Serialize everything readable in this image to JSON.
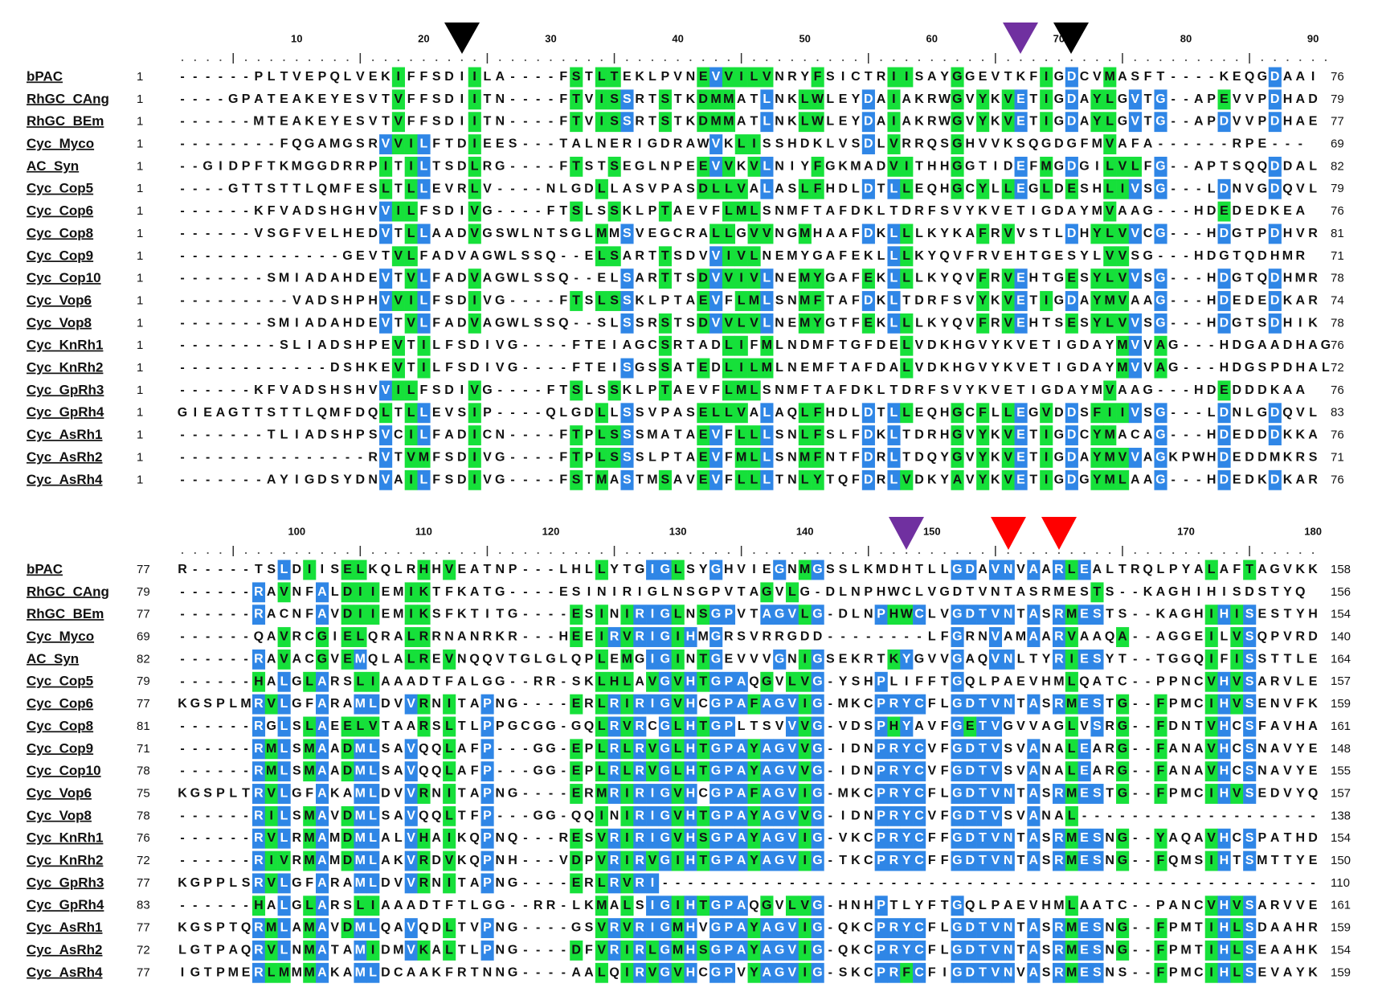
{
  "blocks": [
    {
      "ruler": [
        "10",
        "20",
        "30",
        "40",
        "50",
        "60",
        "70",
        "80",
        "90"
      ],
      "rows": [
        {
          "name": "bPAC",
          "start": "1",
          "sequence": "------PLTVEPQLVEKIFFSDIILA----FSTLTEKLPVNEVVILVNRYFSICTRIISAYGGEVTKFIGDCVMASFT----KEQGDAAI",
          "end": "76"
        },
        {
          "name": "RhGC_CAng",
          "start": "1",
          "sequence": "----GPATEAKEYESVTVFFSDIITN----FTVISSRTSTKDMMATLNKLWLEYDAIAKRWGVYKVETIGDAYLGVTG--APEVVPDHAD",
          "end": "79"
        },
        {
          "name": "RhGC_BEm",
          "start": "1",
          "sequence": "------MTEAKEYESVTVFFSDIITN----FTVISSRTSTKDMMATLNKLWLEYDAIAKRWGVYKVETIGDAYLGVTG--APDVVPDHAE",
          "end": "77"
        },
        {
          "name": "Cyc_Myco",
          "start": "1",
          "sequence": "--------FQGAMGSRVVILFTDIEES---TALNERIGDRAWVKLISSHDKLVSDLVRRQSGHVVKSQGDGFMVAFA------RPE---",
          "end": "69"
        },
        {
          "name": "AC_Syn",
          "start": "1",
          "sequence": "--GIDPFTKMGGDRRPITILTSDLRG----FTSTSEGLNPEEVVKVLNIYFGKMADVITHHGGTIDEFMGDGILVLFG--APTSQQDDAL",
          "end": "82"
        },
        {
          "name": "Cyc_Cop5",
          "start": "1",
          "sequence": "----GTTSTTLQMFESLTLLEVRLV----NLGDLLASVPASDLLVALASLFHDLDTLLEQHGCYLLEGLDESHLIVSG---LDNVGDQVL",
          "end": "79"
        },
        {
          "name": "Cyc_Cop6",
          "start": "1",
          "sequence": "------KFVADSHGHVVILFSDIVG----FTSLSSKLPTAEVFLMLSNMFTAFDKLTDRFSVYKVETIGDAYMVAAG---HDEDEDKEA",
          "end": "76"
        },
        {
          "name": "Cyc_Cop8",
          "start": "1",
          "sequence": "------VSGFVELHEDVTLLAADVGSWLNTSGLMMSVEGCRALLGVVNGMHAAFDKLLLKYKAFRVVSTLDHYLVVCG---HDGTPDHVR",
          "end": "81"
        },
        {
          "name": "Cyc_Cop9",
          "start": "1",
          "sequence": "-------------GEVTVLFADVAGWLSSQ--ELSARTTSDVVIVLNEMYGAFEKLLLKYQVFRVEHTGESYLVVSG---HDGTQDHMR",
          "end": "71"
        },
        {
          "name": "Cyc_Cop10",
          "start": "1",
          "sequence": "-------SMIADAHDEVTVLFADVAGWLSSQ--ELSARTTSDVVIVLNEMYGAFEKLLLKYQVFRVEHTGESYLVVSG---HDGTQDHMR",
          "end": "78"
        },
        {
          "name": "Cyc_Vop6",
          "start": "1",
          "sequence": "---------VADSHPHVVILFSDIVG----FTSLSSKLPTAEVFLMLSNMFTAFDKLTDRFSVYKVETIGDAYMVAAG---HDEDEDKAR",
          "end": "74"
        },
        {
          "name": "Cyc_Vop8",
          "start": "1",
          "sequence": "-------SMIADAHDEVTVLFADVAGWLSSQ--SLSSRSTSDVVLVLNEMYGTFEKLLLKYQVFRVEHTSESYLVVSG---HDGTSDHIK",
          "end": "78"
        },
        {
          "name": "Cyc_KnRh1",
          "start": "1",
          "sequence": "--------SLIADSHPEVTILFSDIVG----FTEIAGCSRTADLIFMLNDMFTGFDELVDKHGVYKVETIGDAYMVVAG---HDGAADHAG",
          "end": "76"
        },
        {
          "name": "Cyc_KnRh2",
          "start": "1",
          "sequence": "------------DSHKEVTILFSDIVG----FTEISGSSATEDLILMLNEMFTAFDALVDKHGVYKVETIGDAYMVVAG---HDGSPDHAL",
          "end": "72"
        },
        {
          "name": "Cyc_GpRh3",
          "start": "1",
          "sequence": "------KFVADSHSHVVILFSDIVG----FTSLSSKLPTAEVFLMLSNMFTAFDKLTDRFSVYKVETIGDAYMVAAG---HDEDDDKAA",
          "end": "76"
        },
        {
          "name": "Cyc_GpRh4",
          "start": "1",
          "sequence": "GIEAGTTSTTLQMFDQLTLLEVSIP----QLGDLLSSVPASELLVALAQLFHDLDTLLEQHGCFLLEGVDDSFIIVSG---LDNLGDQVL",
          "end": "83"
        },
        {
          "name": "Cyc_AsRh1",
          "start": "1",
          "sequence": "-------TLIADSHPSVCILFADICN----FTPLSSSMATAEVFLLLSNLFSLFDKLTDRHGVYKVETIGDCYMACAG---HDEDDDKKA",
          "end": "76"
        },
        {
          "name": "Cyc_AsRh2",
          "start": "1",
          "sequence": "---------------RVTVMFSDIVG----FTPLSSSLPTAEVFMLLSNMFNTFDRLTDQYGVYKVETIGDAYMVVAGKPWHDEDDMKRS",
          "end": "71"
        },
        {
          "name": "Cyc_AsRh4",
          "start": "1",
          "sequence": "-------AYIGDSYDNVAILFSDIVG----FSTMASTMSAVEVFLLLTNLYTQFDRLVDKYAVYKVETIGDGYMLAAG---HDEDKDKAR",
          "end": "76"
        }
      ]
    },
    {
      "ruler": [
        "100",
        "110",
        "120",
        "130",
        "140",
        "150",
        "160",
        "170",
        "180"
      ],
      "rows": [
        {
          "name": "bPAC",
          "start": "77",
          "sequence": "R-----TSLDIISELKQLRHHVEATNP---LHLLYTGIGLSYGHVIEGNMGSSLKMDHTLLGDAVNVAARLEALTRQLPYALAFTAGVKK",
          "end": "158"
        },
        {
          "name": "RhGC_CAng",
          "start": "79",
          "sequence": "------RAVNFALDIIEMIKTFKATG----ESINIRIGLNSGPVTAGVLG-DLNPHWCLVGDTVNTASRMESTS--KAGHIHISDSTYQ",
          "end": "156"
        },
        {
          "name": "RhGC_BEm",
          "start": "77",
          "sequence": "------RACNFAVDIIEMIKSFKTITG----ESINIRIGLNSGPVTAGVLG-DLNPHWCLVGDTVNTASRMESTS--KAGHIHISESTYH",
          "end": "154"
        },
        {
          "name": "Cyc_Myco",
          "start": "69",
          "sequence": "------QAVRCGIELQRALRRNANRKR---HEEIRVRIGIHMGRSVRRGDD--------LFGRNVAMAARVAAQA--AGGEILVSQPVRD",
          "end": "140"
        },
        {
          "name": "AC_Syn",
          "start": "82",
          "sequence": "------RAVACGVEMQLALREVNQQVTGLGLQPLEMGIGINTGEVVVGNIGSEKRTKYGVVGAQVNLTYRIESYT--TGGQIFISSTTLE",
          "end": "164"
        },
        {
          "name": "Cyc_Cop5",
          "start": "79",
          "sequence": "------HALGLARSLIAAADTFALGG--RR-SKLHLAVGVHTGPAQGVLVG-YSHPLIFFTGQLPAEVHMLQATC--PPNCVHVSARVLE",
          "end": "157"
        },
        {
          "name": "Cyc_Cop6",
          "start": "77",
          "sequence": "KGSPLMRVLGFARAMLDVVRNITAPNG----ERLRIRIGVHCGPAFAGVIG-MKCPRYCFLGDTVNTASRMESTG--FPMCIHVSENVFK",
          "end": "159"
        },
        {
          "name": "Cyc_Cop8",
          "start": "81",
          "sequence": "------RGLSLAEELVTAARSLTLPPGCGG-GQLRVRCGLHTGPLTSVVVG-VDSPHYAVFGETVGVVAGLVSRG--FDNTVHCSFAVHA",
          "end": "161"
        },
        {
          "name": "Cyc_Cop9",
          "start": "71",
          "sequence": "------RMLSMAADMLSAVQQLAFP---GG-EPLRLRVGLHTGPAYAGVVG-IDNPRYCVFGDTVSVANALEARG--FANAVHCSNAVYE",
          "end": "148"
        },
        {
          "name": "Cyc_Cop10",
          "start": "78",
          "sequence": "------RMLSMAADMLSAVQQLAFP---GG-EPLRLRVGLHTGPAYAGVVG-IDNPRYCVFGDTVSVANALEARG--FANAVHCSNAVYE",
          "end": "155"
        },
        {
          "name": "Cyc_Vop6",
          "start": "75",
          "sequence": "KGSPLTRVLGFAKAMLDVVRNITAPNG----ERMRIRIGVHCGPAFAGVIG-MKCPRYCFLGDTVNTASRMESTG--FPMCIHVSEDVYQ",
          "end": "157"
        },
        {
          "name": "Cyc_Vop8",
          "start": "78",
          "sequence": "------RILSMAVDMLSAVQQLTFP---GG-QQINIRIGVHTGPAYAGVVG-IDNPRYCVFGDTVSVANAL-------------------",
          "end": "138"
        },
        {
          "name": "Cyc_KnRh1",
          "start": "76",
          "sequence": "------RVLRMAMDMLALVHAIKQPNQ---RESVRIRIGVHSGPAYAGVIG-VKCPRYCFFGDTVNTASRMESNG--YAQAVHCSPATHD",
          "end": "154"
        },
        {
          "name": "Cyc_KnRh2",
          "start": "72",
          "sequence": "------RIVRMAMDMLAKVRDVKQPNH---VDPVRIRVGIHTGPAYAGVIG-TKCPRYCFFGDTVNTASRMESNG--FQMSIHTSMTTYE",
          "end": "150"
        },
        {
          "name": "Cyc_GpRh3",
          "start": "77",
          "sequence": "KGPPLSRVLGFARAMLDVVRNITAPNG----ERLRVRI----------------------------------------------------",
          "end": "110"
        },
        {
          "name": "Cyc_GpRh4",
          "start": "83",
          "sequence": "------HALGLARSLIAAADTFTLGG--RR-LKMALSIGIHTGPAQGVLVG-HNHPTLYFTGQLPAEVHMLAATC--PANCVHVSARVVE",
          "end": "161"
        },
        {
          "name": "Cyc_AsRh1",
          "start": "77",
          "sequence": "KGSPTQRMLAMAVDMLQAVQDLTVPNG----GSVRVRIGMHVGPAYAGVIG-QKCPRYCFLGDTVNTASRMESNG--FPMTIHLSDAAHR",
          "end": "159"
        },
        {
          "name": "Cyc_AsRh2",
          "start": "72",
          "sequence": "LGTPAQRVLNMATAMIDMVKALTLPNG----DFVRIRLGMHSGPAYAGVIG-QKCPRYCFLGDTVNTASRMESNG--FPMTIHLSEAAHK",
          "end": "154"
        },
        {
          "name": "Cyc_AsRh4",
          "start": "77",
          "sequence": "IGTPMERLMMMAKAMLDCAAKFRTNNG----AALQIRVGVHCGPVYAGVIG-SKCPRFCFIGDTVNVASRMESNS--FPMCIHLSEVAYK",
          "end": "159"
        }
      ]
    }
  ]
}
